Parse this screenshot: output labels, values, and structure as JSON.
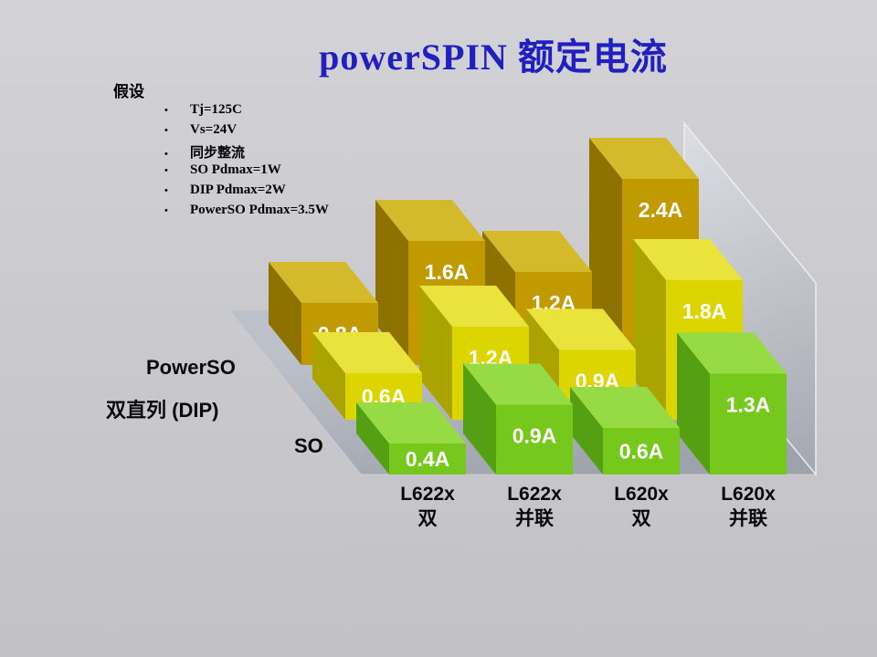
{
  "slide": {
    "title": "powerSPIN 额定电流",
    "title_color": "#2020c0",
    "background": "#c9c9cd"
  },
  "assumptions": {
    "heading": "假设",
    "bullet": "•",
    "items": [
      "Tj=125C",
      "Vs=24V",
      "同步整流",
      "SO Pdmax=1W",
      "DIP Pdmax=2W",
      "PowerSO Pdmax=3.5W"
    ]
  },
  "chart_data": {
    "type": "bar",
    "style": "3d-bars",
    "title": "powerSPIN 额定电流",
    "unit": "A",
    "ylim": [
      0,
      2.6
    ],
    "legend_position": "left-row-labels",
    "categories": [
      {
        "line1": "L622x",
        "line2": "双"
      },
      {
        "line1": "L622x",
        "line2": "并联"
      },
      {
        "line1": "L620x",
        "line2": "双"
      },
      {
        "line1": "L620x",
        "line2": "并联"
      }
    ],
    "series": [
      {
        "name": "PowerSO",
        "values": [
          0.8,
          1.6,
          1.2,
          2.4
        ],
        "labels": [
          "0.8A",
          "1.6A",
          "1.2A",
          "2.4A"
        ],
        "colors": {
          "front": "#c19a00",
          "top": "#d4b92a",
          "side": "#8e7200"
        }
      },
      {
        "name": "双直列 (DIP)",
        "values": [
          0.6,
          1.2,
          0.9,
          1.8
        ],
        "labels": [
          "0.6A",
          "1.2A",
          "0.9A",
          "1.8A"
        ],
        "colors": {
          "front": "#dcd500",
          "top": "#eae33c",
          "side": "#aba400"
        }
      },
      {
        "name": "SO",
        "values": [
          0.4,
          0.9,
          0.6,
          1.3
        ],
        "labels": [
          "0.4A",
          "0.9A",
          "0.6A",
          "1.3A"
        ],
        "colors": {
          "front": "#76c81c",
          "top": "#97db44",
          "side": "#55a012"
        }
      }
    ],
    "row_order_back_to_front": [
      "PowerSO",
      "双直列 (DIP)",
      "SO"
    ],
    "floor_color": "#a8abb3",
    "wall_color": "#c6c9d1",
    "label_text_color": "#ffffff"
  }
}
